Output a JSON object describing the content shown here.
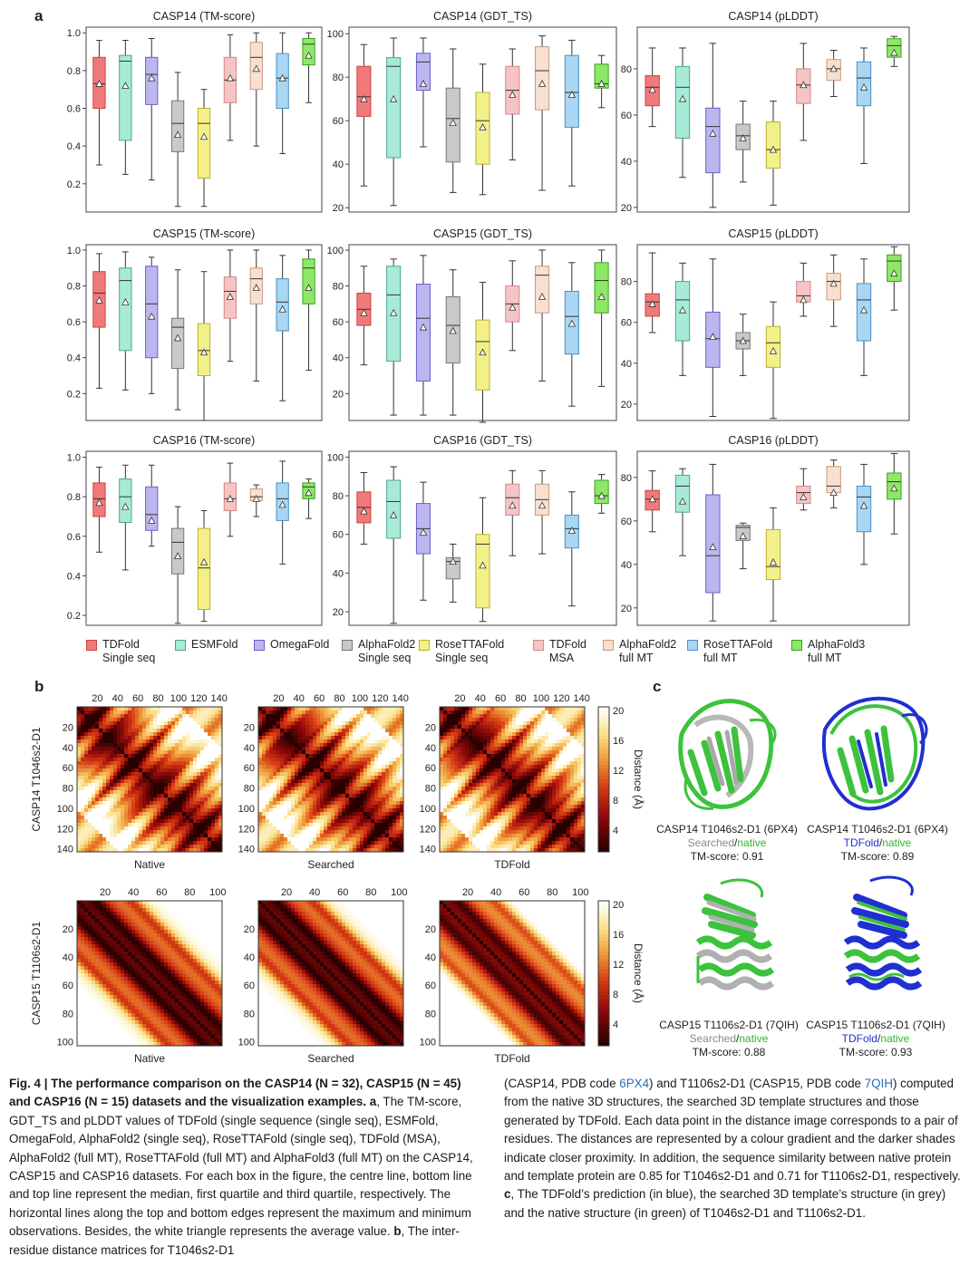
{
  "figure": {
    "panel_a": "a",
    "panel_b": "b",
    "panel_c": "c"
  },
  "colors": {
    "TDFold Single seq": "#f07a7a",
    "ESMFold": "#a8ead8",
    "OmegaFold": "#bcb6ee",
    "AlphaFold2 Single seq": "#c9c9c9",
    "RoseTTAFold Single seq": "#f3f08a",
    "TDFold MSA": "#f6c4c4",
    "AlphaFold2 full MT": "#f8dfcf",
    "RoseTTAFold full MT": "#a9d6f2",
    "AlphaFold3 full MT": "#8ee867"
  },
  "legend": [
    {
      "line1": "TDFold",
      "line2": "Single seq",
      "color": "#f07a7a",
      "edge": "#d04040"
    },
    {
      "line1": "ESMFold",
      "line2": "",
      "color": "#a8ead8",
      "edge": "#4aa888"
    },
    {
      "line1": "OmegaFold",
      "line2": "",
      "color": "#bcb6ee",
      "edge": "#6a60c8"
    },
    {
      "line1": "AlphaFold2",
      "line2": "Single seq",
      "color": "#c9c9c9",
      "edge": "#777777"
    },
    {
      "line1": "RoseTTAFold",
      "line2": "Single seq",
      "color": "#f3f08a",
      "edge": "#b8b030"
    },
    {
      "line1": "TDFold",
      "line2": "MSA",
      "color": "#f6c4c4",
      "edge": "#d08888"
    },
    {
      "line1": "AlphaFold2",
      "line2": "full MT",
      "color": "#f8dfcf",
      "edge": "#c89a80"
    },
    {
      "line1": "RoseTTAFold",
      "line2": "full MT",
      "color": "#a9d6f2",
      "edge": "#4a90c8"
    },
    {
      "line1": "AlphaFold3",
      "line2": "full MT",
      "color": "#8ee867",
      "edge": "#3aa020"
    }
  ],
  "chart_data": [
    {
      "type": "box",
      "title": "CASP14 (TM-score)",
      "ylim": [
        0.05,
        1.03
      ],
      "yticks": [
        0.2,
        0.4,
        0.6,
        0.8,
        1.0
      ],
      "yticklabels": [
        "0.2",
        "0.4",
        "0.6",
        "0.8",
        "1.0"
      ],
      "boxes": [
        [
          0.3,
          0.6,
          0.73,
          0.87,
          0.96,
          0.73
        ],
        [
          0.25,
          0.43,
          0.85,
          0.88,
          0.96,
          0.72
        ],
        [
          0.22,
          0.62,
          0.78,
          0.87,
          0.97,
          0.76
        ],
        [
          0.08,
          0.37,
          0.52,
          0.64,
          0.79,
          0.46
        ],
        [
          0.08,
          0.23,
          0.52,
          0.6,
          0.7,
          0.45
        ],
        [
          0.43,
          0.63,
          0.75,
          0.87,
          0.99,
          0.76
        ],
        [
          0.4,
          0.7,
          0.87,
          0.95,
          1.0,
          0.81
        ],
        [
          0.36,
          0.6,
          0.76,
          0.89,
          1.0,
          0.76
        ],
        [
          0.63,
          0.83,
          0.94,
          0.97,
          1.0,
          0.88
        ]
      ]
    },
    {
      "type": "box",
      "title": "CASP14 (GDT_TS)",
      "ylim": [
        18,
        103
      ],
      "yticks": [
        20,
        40,
        60,
        80,
        100
      ],
      "yticklabels": [
        "20",
        "40",
        "60",
        "80",
        "100"
      ],
      "boxes": [
        [
          30,
          62,
          71,
          85,
          95,
          70
        ],
        [
          21,
          43,
          85,
          89,
          98,
          70
        ],
        [
          48,
          74,
          87,
          91,
          98,
          77
        ],
        [
          27,
          41,
          61,
          75,
          93,
          59
        ],
        [
          26,
          40,
          60,
          73,
          86,
          57
        ],
        [
          42,
          63,
          74,
          85,
          93,
          72
        ],
        [
          28,
          65,
          83,
          94,
          99,
          77
        ],
        [
          30,
          57,
          73,
          90,
          97,
          72
        ],
        [
          66,
          75,
          77,
          86,
          90,
          77
        ]
      ]
    },
    {
      "type": "box",
      "title": "CASP14 (pLDDT)",
      "ylim": [
        18,
        98
      ],
      "yticks": [
        20,
        40,
        60,
        80
      ],
      "yticklabels": [
        "20",
        "40",
        "60",
        "80"
      ],
      "boxes": [
        [
          55,
          64,
          72,
          77,
          89,
          71
        ],
        [
          33,
          50,
          72,
          81,
          89,
          67
        ],
        [
          20,
          35,
          55,
          63,
          91,
          52
        ],
        [
          31,
          45,
          51,
          56,
          66,
          50
        ],
        [
          21,
          37,
          45,
          57,
          66,
          45
        ],
        [
          49,
          65,
          73,
          80,
          91,
          73
        ],
        [
          68,
          75,
          80,
          84,
          88,
          80
        ],
        [
          39,
          64,
          76,
          83,
          89,
          72
        ],
        [
          81,
          85,
          90,
          93,
          94,
          87
        ]
      ]
    },
    {
      "type": "box",
      "title": "CASP15 (TM-score)",
      "ylim": [
        0.05,
        1.03
      ],
      "yticks": [
        0.2,
        0.4,
        0.6,
        0.8,
        1.0
      ],
      "yticklabels": [
        "0.2",
        "0.4",
        "0.6",
        "0.8",
        "1.0"
      ],
      "boxes": [
        [
          0.23,
          0.57,
          0.76,
          0.88,
          0.98,
          0.72
        ],
        [
          0.22,
          0.44,
          0.83,
          0.9,
          0.99,
          0.71
        ],
        [
          0.2,
          0.4,
          0.7,
          0.91,
          0.96,
          0.63
        ],
        [
          0.11,
          0.34,
          0.57,
          0.62,
          0.89,
          0.51
        ],
        [
          0.05,
          0.3,
          0.44,
          0.59,
          0.88,
          0.43
        ],
        [
          0.38,
          0.62,
          0.77,
          0.85,
          1.0,
          0.74
        ],
        [
          0.27,
          0.7,
          0.84,
          0.9,
          1.0,
          0.79
        ],
        [
          0.16,
          0.55,
          0.71,
          0.84,
          0.97,
          0.67
        ],
        [
          0.33,
          0.7,
          0.9,
          0.95,
          1.0,
          0.79
        ]
      ]
    },
    {
      "type": "box",
      "title": "CASP15 (GDT_TS)",
      "ylim": [
        5,
        103
      ],
      "yticks": [
        20,
        40,
        60,
        80,
        100
      ],
      "yticklabels": [
        "20",
        "40",
        "60",
        "80",
        "100"
      ],
      "boxes": [
        [
          36,
          58,
          67,
          76,
          91,
          65
        ],
        [
          8,
          38,
          75,
          91,
          95,
          65
        ],
        [
          8,
          27,
          62,
          81,
          97,
          57
        ],
        [
          8,
          37,
          58,
          74,
          89,
          55
        ],
        [
          4,
          22,
          49,
          61,
          82,
          43
        ],
        [
          44,
          60,
          70,
          80,
          94,
          68
        ],
        [
          27,
          65,
          86,
          91,
          100,
          74
        ],
        [
          13,
          42,
          63,
          77,
          93,
          59
        ],
        [
          24,
          65,
          83,
          93,
          100,
          74
        ]
      ]
    },
    {
      "type": "box",
      "title": "CASP15 (pLDDT)",
      "ylim": [
        12,
        98
      ],
      "yticks": [
        20,
        40,
        60,
        80
      ],
      "yticklabels": [
        "20",
        "40",
        "60",
        "80"
      ],
      "boxes": [
        [
          55,
          63,
          70,
          74,
          94,
          69
        ],
        [
          34,
          51,
          71,
          80,
          89,
          66
        ],
        [
          14,
          38,
          52,
          65,
          91,
          53
        ],
        [
          34,
          47,
          51,
          55,
          64,
          51
        ],
        [
          13,
          38,
          50,
          58,
          70,
          46
        ],
        [
          63,
          70,
          73,
          80,
          89,
          71
        ],
        [
          58,
          71,
          80,
          84,
          93,
          79
        ],
        [
          34,
          51,
          71,
          79,
          91,
          66
        ],
        [
          66,
          80,
          90,
          93,
          97,
          84
        ]
      ]
    },
    {
      "type": "box",
      "title": "CASP16 (TM-score)",
      "ylim": [
        0.15,
        1.03
      ],
      "yticks": [
        0.2,
        0.4,
        0.6,
        0.8,
        1.0
      ],
      "yticklabels": [
        "0.2",
        "0.4",
        "0.6",
        "0.8",
        "1.0"
      ],
      "boxes": [
        [
          0.52,
          0.7,
          0.79,
          0.87,
          0.95,
          0.77
        ],
        [
          0.43,
          0.67,
          0.8,
          0.89,
          0.96,
          0.75
        ],
        [
          0.55,
          0.63,
          0.71,
          0.85,
          0.96,
          0.68
        ],
        [
          0.16,
          0.41,
          0.57,
          0.64,
          0.75,
          0.5
        ],
        [
          0.17,
          0.23,
          0.44,
          0.64,
          0.73,
          0.47
        ],
        [
          0.6,
          0.73,
          0.79,
          0.87,
          0.97,
          0.79
        ],
        [
          0.7,
          0.78,
          0.8,
          0.84,
          0.86,
          0.79
        ],
        [
          0.46,
          0.68,
          0.79,
          0.87,
          0.98,
          0.76
        ],
        [
          0.69,
          0.79,
          0.85,
          0.87,
          0.89,
          0.82
        ]
      ]
    },
    {
      "type": "box",
      "title": "CASP16 (GDT_TS)",
      "ylim": [
        13,
        103
      ],
      "yticks": [
        20,
        40,
        60,
        80,
        100
      ],
      "yticklabels": [
        "20",
        "40",
        "60",
        "80",
        "100"
      ],
      "boxes": [
        [
          55,
          66,
          74,
          82,
          92,
          72
        ],
        [
          14,
          58,
          77,
          88,
          95,
          70
        ],
        [
          26,
          50,
          63,
          76,
          87,
          61
        ],
        [
          25,
          37,
          46,
          48,
          55,
          46
        ],
        [
          15,
          22,
          55,
          60,
          79,
          44
        ],
        [
          49,
          70,
          79,
          86,
          93,
          75
        ],
        [
          50,
          70,
          78,
          86,
          93,
          75
        ],
        [
          23,
          53,
          63,
          70,
          82,
          62
        ],
        [
          71,
          76,
          80,
          88,
          91,
          80
        ]
      ]
    },
    {
      "type": "box",
      "title": "CASP16 (pLDDT)",
      "ylim": [
        12,
        92
      ],
      "yticks": [
        20,
        40,
        60,
        80
      ],
      "yticklabels": [
        "20",
        "40",
        "60",
        "80"
      ],
      "boxes": [
        [
          55,
          65,
          70,
          74,
          83,
          70
        ],
        [
          44,
          64,
          76,
          81,
          84,
          69
        ],
        [
          14,
          27,
          44,
          72,
          86,
          48
        ],
        [
          38,
          51,
          57,
          58,
          59,
          53
        ],
        [
          14,
          33,
          39,
          56,
          66,
          41
        ],
        [
          65,
          68,
          73,
          76,
          84,
          71
        ],
        [
          66,
          73,
          76,
          85,
          88,
          73
        ],
        [
          40,
          55,
          71,
          76,
          86,
          67
        ],
        [
          54,
          70,
          78,
          82,
          91,
          75
        ]
      ]
    }
  ],
  "heatmaps": {
    "row1": {
      "ylabel": "CASP14 T1046s2-D1",
      "ticks": [
        "20",
        "40",
        "60",
        "80",
        "100",
        "120",
        "140"
      ],
      "names": [
        "Native",
        "Searched",
        "TDFold"
      ],
      "colorbar_ticks": [
        "20",
        "16",
        "12",
        "8",
        "4"
      ],
      "colorbar_label": "Distance (Å)"
    },
    "row2": {
      "ylabel": "CASP15 T1106s2-D1",
      "ticks": [
        "20",
        "40",
        "60",
        "80",
        "100"
      ],
      "names": [
        "Native",
        "Searched",
        "TDFold"
      ],
      "colorbar_ticks": [
        "20",
        "16",
        "12",
        "8",
        "4"
      ],
      "colorbar_label": "Distance (Å)"
    }
  },
  "structures": [
    {
      "title": "CASP14 T1046s2-D1 (6PX4)",
      "first": "Searched",
      "sep": "/",
      "second": "native",
      "score": "TM-score: 0.91",
      "first_color": "#8a8a8a",
      "second_color": "#2fb82f"
    },
    {
      "title": "CASP14 T1046s2-D1 (6PX4)",
      "first": "TDFold",
      "sep": "/",
      "second": "native",
      "score": "TM-score: 0.89",
      "first_color": "#2233cc",
      "second_color": "#2fb82f"
    },
    {
      "title": "CASP15 T1106s2-D1 (7QIH)",
      "first": "Searched",
      "sep": "/",
      "second": "native",
      "score": "TM-score: 0.88",
      "first_color": "#8a8a8a",
      "second_color": "#2fb82f"
    },
    {
      "title": "CASP15 T1106s2-D1 (7QIH)",
      "first": "TDFold",
      "sep": "/",
      "second": "native",
      "score": "TM-score: 0.93",
      "first_color": "#2233cc",
      "second_color": "#2fb82f"
    }
  ],
  "caption": {
    "bold": "Fig. 4 | The performance comparison on the CASP14 (N = 32), CASP15 (N = 45) and CASP16 (N = 15) datasets and the visualization examples.",
    "a_letter": "a",
    "a_text": ", The TM-score, GDT_TS and pLDDT values of TDFold (single sequence (single seq), ESMFold, OmegaFold, AlphaFold2 (single seq), RoseTTAFold (single seq), TDFold (MSA), AlphaFold2 (full MT), RoseTTAFold (full MT) and AlphaFold3 (full MT) on the CASP14, CASP15 and CASP16 datasets. For each box in the figure, the centre line, bottom line and top line represent the median, first quartile and third quartile, respectively. The horizontal lines along the top and bottom edges represent the maximum and minimum observations. Besides, the white triangle represents the average value.",
    "b_letter": "b",
    "b_text": ", The inter-residue distance matrices for T1046s2-D1",
    "right_1": "(CASP14, PDB code ",
    "link1": "6PX4",
    "right_2": ") and T1106s2-D1 (CASP15, PDB code ",
    "link2": "7QIH",
    "right_3": ") computed from the native 3D structures, the searched 3D template structures and those generated by TDFold. Each data point in the distance image corresponds to a pair of residues. The distances are represented by a colour gradient and the darker shades indicate closer proximity. In addition, the sequence similarity between native protein and template protein are 0.85 for T1046s2-D1 and 0.71 for T1106s2-D1, respectively.",
    "c_letter": "c",
    "c_text": ", The TDFold’s prediction (in blue), the searched 3D template’s structure (in grey) and the native structure (in green) of T1046s2-D1 and T1106s2-D1."
  }
}
